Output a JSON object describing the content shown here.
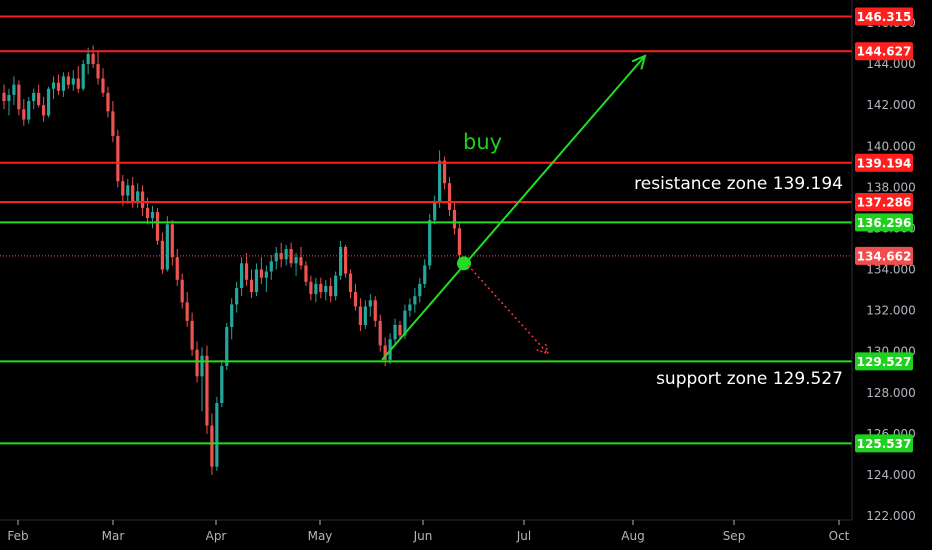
{
  "chart_data": {
    "type": "candlestick",
    "y_ticks": [
      122,
      124,
      126,
      128,
      130,
      132,
      134,
      136,
      138,
      140,
      142,
      144,
      146
    ],
    "ylim": [
      121.9,
      147.5
    ],
    "x_ticks": [
      "Feb",
      "Mar",
      "Apr",
      "May",
      "Jun",
      "Jul",
      "Aug",
      "Sep",
      "Oct"
    ],
    "colors": {
      "up": "#26a69a",
      "down": "#ef5350",
      "red_line": "#ff1f1f",
      "green_line": "#22dd22",
      "bg": "#000000"
    },
    "levels": [
      {
        "value": 146.315,
        "label": "146.315",
        "color": "red"
      },
      {
        "value": 144.627,
        "label": "144.627",
        "color": "red"
      },
      {
        "value": 139.194,
        "label": "139.194",
        "color": "red"
      },
      {
        "value": 137.286,
        "label": "137.286",
        "color": "red"
      },
      {
        "value": 136.296,
        "label": "136.296",
        "color": "green"
      },
      {
        "value": 134.662,
        "label": "134.662",
        "color": "last",
        "dotted": true
      },
      {
        "value": 129.527,
        "label": "129.527",
        "color": "green"
      },
      {
        "value": 125.537,
        "label": "125.537",
        "color": "green"
      }
    ],
    "annotations": {
      "buy": "buy",
      "resistance": "resistance zone 139.194",
      "support": "support zone 129.527"
    },
    "candles": [
      [
        142.6,
        143.0,
        141.8,
        142.2
      ],
      [
        142.2,
        142.8,
        141.5,
        142.5
      ],
      [
        142.5,
        143.4,
        142.0,
        143.0
      ],
      [
        143.0,
        143.2,
        141.5,
        141.8
      ],
      [
        141.8,
        142.3,
        141.0,
        141.3
      ],
      [
        141.3,
        142.4,
        141.1,
        142.2
      ],
      [
        142.2,
        142.8,
        141.8,
        142.6
      ],
      [
        142.6,
        143.0,
        141.9,
        142.0
      ],
      [
        142.0,
        142.4,
        141.2,
        141.5
      ],
      [
        141.5,
        142.9,
        141.4,
        142.8
      ],
      [
        142.8,
        143.4,
        142.3,
        143.1
      ],
      [
        143.1,
        143.5,
        142.5,
        142.7
      ],
      [
        142.7,
        143.6,
        142.4,
        143.4
      ],
      [
        143.4,
        143.6,
        142.8,
        143.0
      ],
      [
        143.0,
        143.7,
        142.7,
        143.3
      ],
      [
        143.3,
        143.9,
        142.6,
        142.8
      ],
      [
        142.8,
        144.2,
        142.7,
        144.0
      ],
      [
        144.0,
        144.8,
        143.5,
        144.5
      ],
      [
        144.5,
        144.9,
        143.8,
        144.0
      ],
      [
        144.0,
        144.6,
        143.0,
        143.3
      ],
      [
        143.3,
        143.8,
        142.4,
        142.6
      ],
      [
        142.6,
        142.9,
        141.4,
        141.7
      ],
      [
        141.7,
        142.2,
        140.2,
        140.5
      ],
      [
        140.5,
        140.8,
        138.0,
        138.3
      ],
      [
        138.3,
        138.6,
        137.1,
        137.6
      ],
      [
        137.6,
        138.4,
        137.2,
        138.1
      ],
      [
        138.1,
        138.5,
        137.0,
        137.3
      ],
      [
        137.3,
        138.2,
        137.0,
        137.8
      ],
      [
        137.8,
        138.1,
        136.6,
        137.0
      ],
      [
        137.0,
        137.5,
        136.2,
        136.5
      ],
      [
        136.5,
        137.1,
        136.0,
        136.8
      ],
      [
        136.8,
        137.0,
        135.2,
        135.4
      ],
      [
        135.4,
        135.8,
        133.8,
        134.0
      ],
      [
        134.0,
        136.6,
        133.9,
        136.2
      ],
      [
        136.2,
        136.4,
        134.2,
        134.6
      ],
      [
        134.6,
        135.0,
        133.2,
        133.5
      ],
      [
        133.5,
        133.8,
        132.1,
        132.4
      ],
      [
        132.4,
        132.9,
        131.2,
        131.5
      ],
      [
        131.5,
        131.9,
        129.8,
        130.1
      ],
      [
        130.1,
        130.5,
        128.5,
        128.8
      ],
      [
        128.8,
        130.2,
        127.1,
        129.8
      ],
      [
        129.8,
        130.3,
        126.0,
        126.4
      ],
      [
        126.4,
        127.0,
        124.0,
        124.4
      ],
      [
        124.4,
        127.8,
        124.2,
        127.5
      ],
      [
        127.5,
        129.6,
        127.3,
        129.3
      ],
      [
        129.3,
        131.4,
        129.1,
        131.2
      ],
      [
        131.2,
        132.6,
        130.6,
        132.3
      ],
      [
        132.3,
        133.4,
        131.9,
        133.1
      ],
      [
        133.1,
        134.6,
        132.7,
        134.3
      ],
      [
        134.3,
        134.8,
        133.2,
        133.5
      ],
      [
        133.5,
        134.0,
        132.6,
        132.9
      ],
      [
        132.9,
        134.3,
        132.7,
        134.0
      ],
      [
        134.0,
        134.6,
        133.3,
        133.6
      ],
      [
        133.6,
        134.2,
        132.9,
        133.9
      ],
      [
        133.9,
        134.7,
        133.5,
        134.4
      ],
      [
        134.4,
        135.1,
        134.0,
        134.8
      ],
      [
        134.8,
        135.3,
        134.1,
        134.5
      ],
      [
        134.5,
        135.2,
        134.2,
        135.0
      ],
      [
        135.0,
        135.3,
        134.1,
        134.3
      ],
      [
        134.3,
        134.8,
        133.7,
        134.6
      ],
      [
        134.6,
        135.1,
        134.0,
        134.2
      ],
      [
        134.2,
        134.4,
        133.2,
        133.4
      ],
      [
        133.4,
        133.7,
        132.5,
        132.8
      ],
      [
        132.8,
        133.6,
        132.4,
        133.3
      ],
      [
        133.3,
        133.6,
        132.6,
        132.9
      ],
      [
        132.9,
        133.5,
        132.5,
        133.2
      ],
      [
        133.2,
        133.6,
        132.4,
        132.7
      ],
      [
        132.7,
        133.9,
        132.5,
        133.7
      ],
      [
        133.7,
        135.4,
        133.5,
        135.1
      ],
      [
        135.1,
        135.2,
        133.6,
        133.8
      ],
      [
        133.8,
        134.0,
        132.6,
        132.9
      ],
      [
        132.9,
        133.3,
        132.0,
        132.2
      ],
      [
        132.2,
        132.6,
        131.0,
        131.3
      ],
      [
        131.3,
        132.5,
        131.1,
        132.2
      ],
      [
        132.2,
        132.8,
        131.7,
        132.5
      ],
      [
        132.5,
        132.7,
        131.2,
        131.5
      ],
      [
        131.5,
        131.8,
        130.0,
        130.3
      ],
      [
        130.3,
        130.7,
        129.3,
        129.6
      ],
      [
        129.6,
        130.9,
        129.4,
        130.6
      ],
      [
        130.6,
        131.6,
        130.3,
        131.3
      ],
      [
        131.3,
        131.5,
        130.6,
        130.8
      ],
      [
        130.8,
        132.3,
        130.6,
        132.0
      ],
      [
        132.0,
        132.6,
        131.7,
        132.3
      ],
      [
        132.3,
        133.1,
        131.9,
        132.7
      ],
      [
        132.7,
        133.6,
        132.4,
        133.3
      ],
      [
        133.3,
        134.5,
        133.1,
        134.2
      ],
      [
        134.2,
        136.7,
        134.0,
        136.4
      ],
      [
        136.4,
        137.6,
        136.2,
        137.3
      ],
      [
        137.3,
        139.8,
        137.0,
        139.3
      ],
      [
        139.3,
        139.5,
        137.9,
        138.2
      ],
      [
        138.2,
        138.5,
        136.6,
        136.9
      ],
      [
        136.9,
        137.3,
        135.7,
        136.0
      ],
      [
        136.0,
        136.3,
        134.5,
        134.7
      ]
    ]
  }
}
